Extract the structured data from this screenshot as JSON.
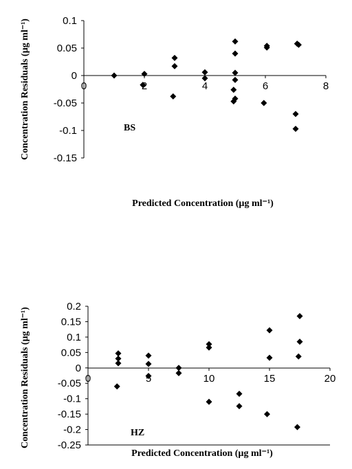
{
  "chart_data": [
    {
      "type": "scatter",
      "annotation": "BS",
      "xlabel": "Predicted Concentration (µg ml⁻¹)",
      "ylabel": "Concentration Residuals (µg ml⁻¹)",
      "xlim": [
        0,
        8
      ],
      "ylim": [
        -0.15,
        0.1
      ],
      "x_ticks": [
        0,
        2,
        4,
        6,
        8
      ],
      "x_tick_labels": [
        "0",
        "2",
        "4",
        "6",
        "8"
      ],
      "y_ticks": [
        0.1,
        0.05,
        0,
        -0.05,
        -0.1,
        -0.15
      ],
      "y_tick_labels": [
        "0.1",
        "0.05",
        "0",
        "-0.05",
        "-0.1",
        "-0.15"
      ],
      "grid": false,
      "marker": "diamond",
      "points": [
        {
          "x": 1.0,
          "y": 0.0
        },
        {
          "x": 2.0,
          "y": 0.003
        },
        {
          "x": 1.95,
          "y": -0.017
        },
        {
          "x": 3.0,
          "y": 0.032
        },
        {
          "x": 3.0,
          "y": 0.017
        },
        {
          "x": 2.95,
          "y": -0.038
        },
        {
          "x": 4.0,
          "y": 0.006
        },
        {
          "x": 4.0,
          "y": -0.005
        },
        {
          "x": 5.0,
          "y": 0.062
        },
        {
          "x": 5.0,
          "y": 0.04
        },
        {
          "x": 5.0,
          "y": 0.005
        },
        {
          "x": 5.0,
          "y": -0.008
        },
        {
          "x": 4.95,
          "y": -0.026
        },
        {
          "x": 5.0,
          "y": -0.042
        },
        {
          "x": 4.95,
          "y": -0.047
        },
        {
          "x": 6.05,
          "y": 0.054
        },
        {
          "x": 6.05,
          "y": 0.051
        },
        {
          "x": 5.95,
          "y": -0.05
        },
        {
          "x": 7.05,
          "y": 0.058
        },
        {
          "x": 7.1,
          "y": 0.056
        },
        {
          "x": 7.0,
          "y": -0.07
        },
        {
          "x": 7.0,
          "y": -0.097
        }
      ]
    },
    {
      "type": "scatter",
      "annotation": "HZ",
      "xlabel": "Predicted Concentration (µg ml⁻¹)",
      "ylabel": "Concentration Residuals (µg ml⁻¹)",
      "xlim": [
        0,
        20
      ],
      "ylim": [
        -0.25,
        0.2
      ],
      "x_ticks": [
        0,
        5,
        10,
        15,
        20
      ],
      "x_tick_labels": [
        "0",
        "5",
        "10",
        "15",
        "20"
      ],
      "y_ticks": [
        0.2,
        0.15,
        0.1,
        0.05,
        0,
        -0.05,
        -0.1,
        -0.15,
        -0.2,
        -0.25
      ],
      "y_tick_labels": [
        "0.2",
        "0.15",
        "0.1",
        "0.05",
        "0",
        "-0.05",
        "-0.1",
        "-0.15",
        "-0.2",
        "-0.25"
      ],
      "grid": false,
      "marker": "diamond",
      "points": [
        {
          "x": 2.5,
          "y": 0.047
        },
        {
          "x": 2.5,
          "y": 0.03
        },
        {
          "x": 2.5,
          "y": 0.015
        },
        {
          "x": 2.4,
          "y": -0.06
        },
        {
          "x": 5.0,
          "y": 0.04
        },
        {
          "x": 5.0,
          "y": 0.013
        },
        {
          "x": 5.0,
          "y": -0.026
        },
        {
          "x": 7.5,
          "y": 0.0
        },
        {
          "x": 7.5,
          "y": -0.017
        },
        {
          "x": 10.0,
          "y": 0.077
        },
        {
          "x": 10.0,
          "y": 0.066
        },
        {
          "x": 10.0,
          "y": -0.11
        },
        {
          "x": 12.5,
          "y": -0.084
        },
        {
          "x": 12.5,
          "y": -0.124
        },
        {
          "x": 15.0,
          "y": 0.122
        },
        {
          "x": 15.0,
          "y": 0.033
        },
        {
          "x": 14.8,
          "y": -0.15
        },
        {
          "x": 17.5,
          "y": 0.168
        },
        {
          "x": 17.5,
          "y": 0.085
        },
        {
          "x": 17.4,
          "y": 0.037
        },
        {
          "x": 17.3,
          "y": -0.192
        }
      ]
    }
  ]
}
